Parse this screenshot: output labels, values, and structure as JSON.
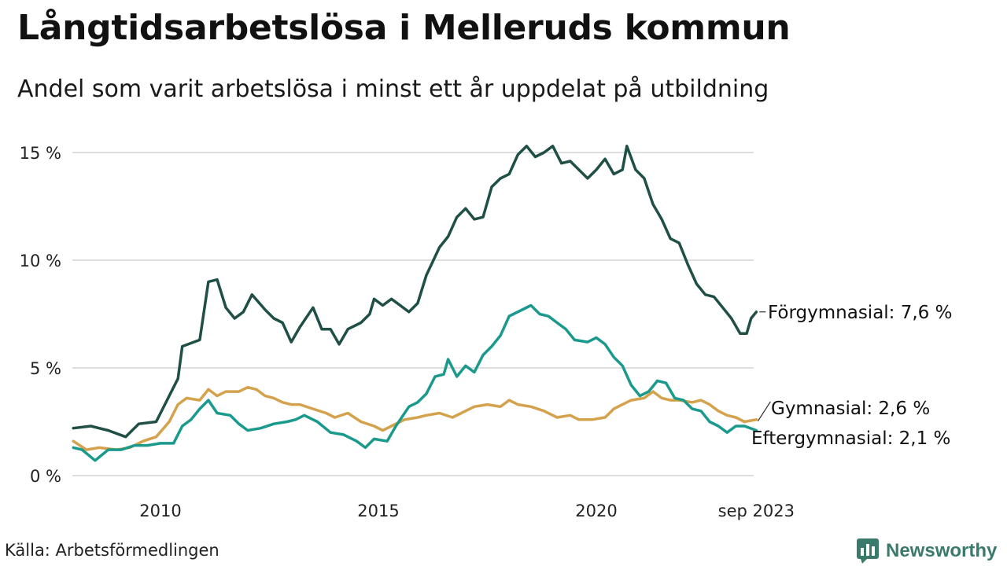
{
  "header": {
    "title": "Långtidsarbetslösa i Melleruds kommun",
    "subtitle": "Andel som varit arbetslösa i minst ett år uppdelat på utbildning"
  },
  "footer": {
    "source": "Källa: Arbetsförmedlingen",
    "brand": "Newsworthy"
  },
  "colors": {
    "forgymnasial": "#1f4f45",
    "eftergymnasial": "#1a9a8c",
    "gymnasial": "#d4a24c",
    "grid": "#dedede",
    "brand": "#3a7a6c"
  },
  "chart_data": {
    "type": "line",
    "title": "Långtidsarbetslösa i Melleruds kommun",
    "subtitle": "Andel som varit arbetslösa i minst ett år uppdelat på utbildning",
    "xlabel": "",
    "ylabel": "",
    "xlim": [
      2008.0,
      2023.67
    ],
    "ylim": [
      0,
      15.8
    ],
    "grid": true,
    "legend": "direct labels at line ends (right)",
    "y_ticks": [
      {
        "value": 0,
        "label": "0 %"
      },
      {
        "value": 5,
        "label": "5 %"
      },
      {
        "value": 10,
        "label": "10 %"
      },
      {
        "value": 15,
        "label": "15 %"
      }
    ],
    "x_ticks": [
      {
        "value": 2010,
        "label": "2010"
      },
      {
        "value": 2015,
        "label": "2015"
      },
      {
        "value": 2020,
        "label": "2020"
      },
      {
        "value": 2023.67,
        "label": "sep 2023"
      }
    ],
    "series": [
      {
        "name": "Förgymnasial",
        "end_label": "Förgymnasial: 7,6 %",
        "color": "#1f4f45",
        "points": [
          [
            2008.0,
            2.2
          ],
          [
            2008.4,
            2.3
          ],
          [
            2008.8,
            2.1
          ],
          [
            2009.2,
            1.8
          ],
          [
            2009.5,
            2.4
          ],
          [
            2009.9,
            2.5
          ],
          [
            2010.2,
            3.7
          ],
          [
            2010.4,
            4.5
          ],
          [
            2010.5,
            6.0
          ],
          [
            2010.9,
            6.3
          ],
          [
            2011.1,
            9.0
          ],
          [
            2011.3,
            9.1
          ],
          [
            2011.5,
            7.8
          ],
          [
            2011.7,
            7.3
          ],
          [
            2011.9,
            7.6
          ],
          [
            2012.1,
            8.4
          ],
          [
            2012.4,
            7.7
          ],
          [
            2012.6,
            7.3
          ],
          [
            2012.8,
            7.1
          ],
          [
            2013.0,
            6.2
          ],
          [
            2013.2,
            6.9
          ],
          [
            2013.5,
            7.8
          ],
          [
            2013.7,
            6.8
          ],
          [
            2013.9,
            6.8
          ],
          [
            2014.1,
            6.1
          ],
          [
            2014.3,
            6.8
          ],
          [
            2014.6,
            7.1
          ],
          [
            2014.8,
            7.5
          ],
          [
            2014.9,
            8.2
          ],
          [
            2015.1,
            7.9
          ],
          [
            2015.3,
            8.2
          ],
          [
            2015.5,
            7.9
          ],
          [
            2015.7,
            7.6
          ],
          [
            2015.9,
            8.0
          ],
          [
            2016.1,
            9.3
          ],
          [
            2016.4,
            10.6
          ],
          [
            2016.6,
            11.1
          ],
          [
            2016.8,
            12.0
          ],
          [
            2017.0,
            12.4
          ],
          [
            2017.2,
            11.9
          ],
          [
            2017.4,
            12.0
          ],
          [
            2017.6,
            13.4
          ],
          [
            2017.8,
            13.8
          ],
          [
            2018.0,
            14.0
          ],
          [
            2018.2,
            14.9
          ],
          [
            2018.4,
            15.3
          ],
          [
            2018.6,
            14.8
          ],
          [
            2018.8,
            15.0
          ],
          [
            2019.0,
            15.3
          ],
          [
            2019.2,
            14.5
          ],
          [
            2019.4,
            14.6
          ],
          [
            2019.6,
            14.2
          ],
          [
            2019.8,
            13.8
          ],
          [
            2020.0,
            14.2
          ],
          [
            2020.2,
            14.7
          ],
          [
            2020.4,
            14.0
          ],
          [
            2020.6,
            14.2
          ],
          [
            2020.7,
            15.3
          ],
          [
            2020.9,
            14.2
          ],
          [
            2021.1,
            13.8
          ],
          [
            2021.3,
            12.6
          ],
          [
            2021.5,
            11.9
          ],
          [
            2021.7,
            11.0
          ],
          [
            2021.9,
            10.8
          ],
          [
            2022.1,
            9.8
          ],
          [
            2022.3,
            8.9
          ],
          [
            2022.5,
            8.4
          ],
          [
            2022.7,
            8.3
          ],
          [
            2022.9,
            7.8
          ],
          [
            2023.1,
            7.3
          ],
          [
            2023.3,
            6.6
          ],
          [
            2023.45,
            6.6
          ],
          [
            2023.55,
            7.3
          ],
          [
            2023.67,
            7.6
          ]
        ]
      },
      {
        "name": "Gymnasial",
        "end_label": "Gymnasial: 2,6 %",
        "color": "#d4a24c",
        "points": [
          [
            2008.0,
            1.6
          ],
          [
            2008.3,
            1.2
          ],
          [
            2008.6,
            1.3
          ],
          [
            2009.0,
            1.2
          ],
          [
            2009.3,
            1.3
          ],
          [
            2009.6,
            1.6
          ],
          [
            2009.9,
            1.8
          ],
          [
            2010.2,
            2.5
          ],
          [
            2010.4,
            3.3
          ],
          [
            2010.6,
            3.6
          ],
          [
            2010.9,
            3.5
          ],
          [
            2011.1,
            4.0
          ],
          [
            2011.3,
            3.7
          ],
          [
            2011.5,
            3.9
          ],
          [
            2011.8,
            3.9
          ],
          [
            2012.0,
            4.1
          ],
          [
            2012.2,
            4.0
          ],
          [
            2012.4,
            3.7
          ],
          [
            2012.6,
            3.6
          ],
          [
            2012.8,
            3.4
          ],
          [
            2013.0,
            3.3
          ],
          [
            2013.2,
            3.3
          ],
          [
            2013.5,
            3.1
          ],
          [
            2013.8,
            2.9
          ],
          [
            2014.0,
            2.7
          ],
          [
            2014.3,
            2.9
          ],
          [
            2014.6,
            2.5
          ],
          [
            2014.9,
            2.3
          ],
          [
            2015.1,
            2.1
          ],
          [
            2015.3,
            2.3
          ],
          [
            2015.6,
            2.6
          ],
          [
            2015.9,
            2.7
          ],
          [
            2016.1,
            2.8
          ],
          [
            2016.4,
            2.9
          ],
          [
            2016.7,
            2.7
          ],
          [
            2016.9,
            2.9
          ],
          [
            2017.2,
            3.2
          ],
          [
            2017.5,
            3.3
          ],
          [
            2017.8,
            3.2
          ],
          [
            2018.0,
            3.5
          ],
          [
            2018.2,
            3.3
          ],
          [
            2018.5,
            3.2
          ],
          [
            2018.8,
            3.0
          ],
          [
            2019.1,
            2.7
          ],
          [
            2019.4,
            2.8
          ],
          [
            2019.6,
            2.6
          ],
          [
            2019.9,
            2.6
          ],
          [
            2020.2,
            2.7
          ],
          [
            2020.4,
            3.1
          ],
          [
            2020.6,
            3.3
          ],
          [
            2020.8,
            3.5
          ],
          [
            2021.1,
            3.6
          ],
          [
            2021.3,
            3.9
          ],
          [
            2021.5,
            3.6
          ],
          [
            2021.7,
            3.5
          ],
          [
            2021.9,
            3.5
          ],
          [
            2022.2,
            3.4
          ],
          [
            2022.4,
            3.5
          ],
          [
            2022.6,
            3.3
          ],
          [
            2022.8,
            3.0
          ],
          [
            2023.0,
            2.8
          ],
          [
            2023.2,
            2.7
          ],
          [
            2023.4,
            2.5
          ],
          [
            2023.67,
            2.6
          ]
        ]
      },
      {
        "name": "Eftergymnasial",
        "end_label": "Eftergymnasial: 2,1 %",
        "color": "#1a9a8c",
        "points": [
          [
            2008.0,
            1.3
          ],
          [
            2008.2,
            1.2
          ],
          [
            2008.5,
            0.7
          ],
          [
            2008.8,
            1.2
          ],
          [
            2009.1,
            1.2
          ],
          [
            2009.4,
            1.4
          ],
          [
            2009.7,
            1.4
          ],
          [
            2010.0,
            1.5
          ],
          [
            2010.3,
            1.5
          ],
          [
            2010.5,
            2.3
          ],
          [
            2010.7,
            2.6
          ],
          [
            2010.9,
            3.1
          ],
          [
            2011.1,
            3.5
          ],
          [
            2011.3,
            2.9
          ],
          [
            2011.6,
            2.8
          ],
          [
            2011.8,
            2.4
          ],
          [
            2012.0,
            2.1
          ],
          [
            2012.3,
            2.2
          ],
          [
            2012.6,
            2.4
          ],
          [
            2012.9,
            2.5
          ],
          [
            2013.1,
            2.6
          ],
          [
            2013.3,
            2.8
          ],
          [
            2013.6,
            2.5
          ],
          [
            2013.9,
            2.0
          ],
          [
            2014.2,
            1.9
          ],
          [
            2014.5,
            1.6
          ],
          [
            2014.7,
            1.3
          ],
          [
            2014.9,
            1.7
          ],
          [
            2015.2,
            1.6
          ],
          [
            2015.4,
            2.3
          ],
          [
            2015.7,
            3.2
          ],
          [
            2015.9,
            3.4
          ],
          [
            2016.1,
            3.8
          ],
          [
            2016.3,
            4.6
          ],
          [
            2016.5,
            4.7
          ],
          [
            2016.6,
            5.4
          ],
          [
            2016.8,
            4.6
          ],
          [
            2017.0,
            5.1
          ],
          [
            2017.2,
            4.8
          ],
          [
            2017.4,
            5.6
          ],
          [
            2017.6,
            6.0
          ],
          [
            2017.8,
            6.5
          ],
          [
            2018.0,
            7.4
          ],
          [
            2018.3,
            7.7
          ],
          [
            2018.5,
            7.9
          ],
          [
            2018.7,
            7.5
          ],
          [
            2018.9,
            7.4
          ],
          [
            2019.1,
            7.1
          ],
          [
            2019.3,
            6.8
          ],
          [
            2019.5,
            6.3
          ],
          [
            2019.8,
            6.2
          ],
          [
            2020.0,
            6.4
          ],
          [
            2020.2,
            6.1
          ],
          [
            2020.4,
            5.5
          ],
          [
            2020.6,
            5.1
          ],
          [
            2020.8,
            4.2
          ],
          [
            2021.0,
            3.7
          ],
          [
            2021.2,
            3.9
          ],
          [
            2021.4,
            4.4
          ],
          [
            2021.6,
            4.3
          ],
          [
            2021.8,
            3.6
          ],
          [
            2022.0,
            3.5
          ],
          [
            2022.2,
            3.1
          ],
          [
            2022.4,
            3.0
          ],
          [
            2022.6,
            2.5
          ],
          [
            2022.8,
            2.3
          ],
          [
            2023.0,
            2.0
          ],
          [
            2023.2,
            2.3
          ],
          [
            2023.4,
            2.3
          ],
          [
            2023.67,
            2.1
          ]
        ]
      }
    ]
  }
}
